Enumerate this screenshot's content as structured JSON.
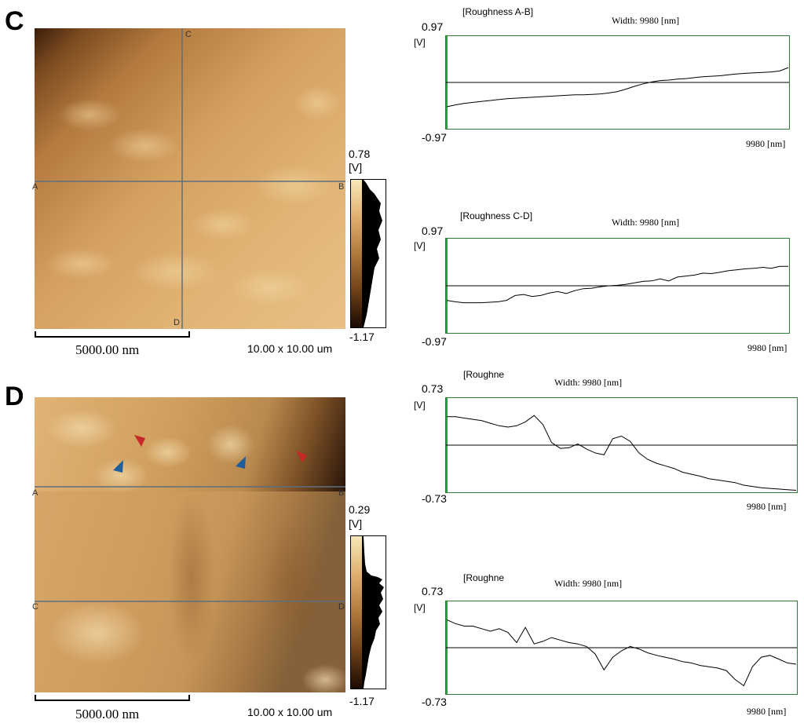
{
  "panels": [
    {
      "letter": "C",
      "markers": [
        "A",
        "B",
        "C",
        "D"
      ],
      "colorbar": {
        "max": "0.78",
        "unit": "[V]",
        "min": "-1.17"
      },
      "scale_bar": "5000.00 nm",
      "scan_size": "10.00 x 10.00 um",
      "profiles": [
        {
          "title": "[Roughness A-B]",
          "width": "Width: 9980 [nm]",
          "ymax": "0.97",
          "ymin": "-0.97",
          "unit": "[V]",
          "xend": "9980 [nm]",
          "ylim": [
            -0.97,
            0.97
          ],
          "values": [
            -0.51,
            -0.47,
            -0.44,
            -0.42,
            -0.4,
            -0.38,
            -0.36,
            -0.34,
            -0.33,
            -0.32,
            -0.31,
            -0.3,
            -0.29,
            -0.28,
            -0.27,
            -0.26,
            -0.26,
            -0.25,
            -0.24,
            -0.22,
            -0.19,
            -0.14,
            -0.08,
            -0.03,
            0.01,
            0.04,
            0.05,
            0.07,
            0.08,
            0.1,
            0.12,
            0.13,
            0.14,
            0.16,
            0.18,
            0.19,
            0.2,
            0.21,
            0.22,
            0.24,
            0.31
          ]
        },
        {
          "title": "[Roughness C-D]",
          "width": "Width: 9980 [nm]",
          "ymax": "0.97",
          "ymin": "-0.97",
          "unit": "[V]",
          "xend": "9980 [nm]",
          "ylim": [
            -0.97,
            0.97
          ],
          "values": [
            -0.3,
            -0.33,
            -0.35,
            -0.35,
            -0.35,
            -0.34,
            -0.33,
            -0.3,
            -0.2,
            -0.18,
            -0.22,
            -0.2,
            -0.15,
            -0.12,
            -0.16,
            -0.1,
            -0.06,
            -0.05,
            -0.02,
            0.0,
            0.01,
            0.03,
            0.06,
            0.09,
            0.1,
            0.14,
            0.1,
            0.18,
            0.2,
            0.22,
            0.26,
            0.25,
            0.28,
            0.31,
            0.33,
            0.35,
            0.36,
            0.38,
            0.36,
            0.4,
            0.4
          ]
        }
      ]
    },
    {
      "letter": "D",
      "markers": [
        "A",
        "B",
        "C",
        "D"
      ],
      "colorbar": {
        "max": "0.29",
        "unit": "[V]",
        "min": "-1.17"
      },
      "scale_bar": "5000.00 nm",
      "scan_size": "10.00 x 10.00 um",
      "profiles": [
        {
          "title": "[Roughne",
          "width": "Width: 9980 [nm]",
          "ymax": "0.73",
          "ymin": "-0.73",
          "unit": "[V]",
          "xend": "9980 [nm]",
          "ylim": [
            -0.73,
            0.73
          ],
          "values": [
            0.44,
            0.44,
            0.42,
            0.4,
            0.38,
            0.34,
            0.3,
            0.28,
            0.3,
            0.36,
            0.46,
            0.32,
            0.04,
            -0.05,
            -0.04,
            0.02,
            -0.06,
            -0.12,
            -0.15,
            0.1,
            0.14,
            0.06,
            -0.12,
            -0.22,
            -0.28,
            -0.32,
            -0.36,
            -0.42,
            -0.45,
            -0.48,
            -0.52,
            -0.54,
            -0.56,
            -0.58,
            -0.62,
            -0.64,
            -0.66,
            -0.67,
            -0.68,
            -0.69,
            -0.7
          ]
        },
        {
          "title": "[Roughne",
          "width": "Width: 9980 [nm]",
          "ymax": "0.73",
          "ymin": "-0.73",
          "unit": "[V]",
          "xend": "9980 [nm]",
          "ylim": [
            -0.73,
            0.73
          ],
          "values": [
            0.44,
            0.38,
            0.34,
            0.34,
            0.3,
            0.26,
            0.3,
            0.24,
            0.08,
            0.32,
            0.06,
            0.1,
            0.16,
            0.12,
            0.08,
            0.06,
            0.02,
            -0.1,
            -0.35,
            -0.15,
            -0.05,
            0.02,
            -0.02,
            -0.08,
            -0.12,
            -0.15,
            -0.18,
            -0.22,
            -0.24,
            -0.28,
            -0.3,
            -0.32,
            -0.36,
            -0.5,
            -0.6,
            -0.3,
            -0.15,
            -0.12,
            -0.18,
            -0.24,
            -0.26
          ]
        }
      ]
    }
  ],
  "colors": {
    "profile_border": "#2e7d32",
    "profile_left_edge": "#2ea043",
    "trace": "#000000",
    "zero_line": "#000000"
  }
}
